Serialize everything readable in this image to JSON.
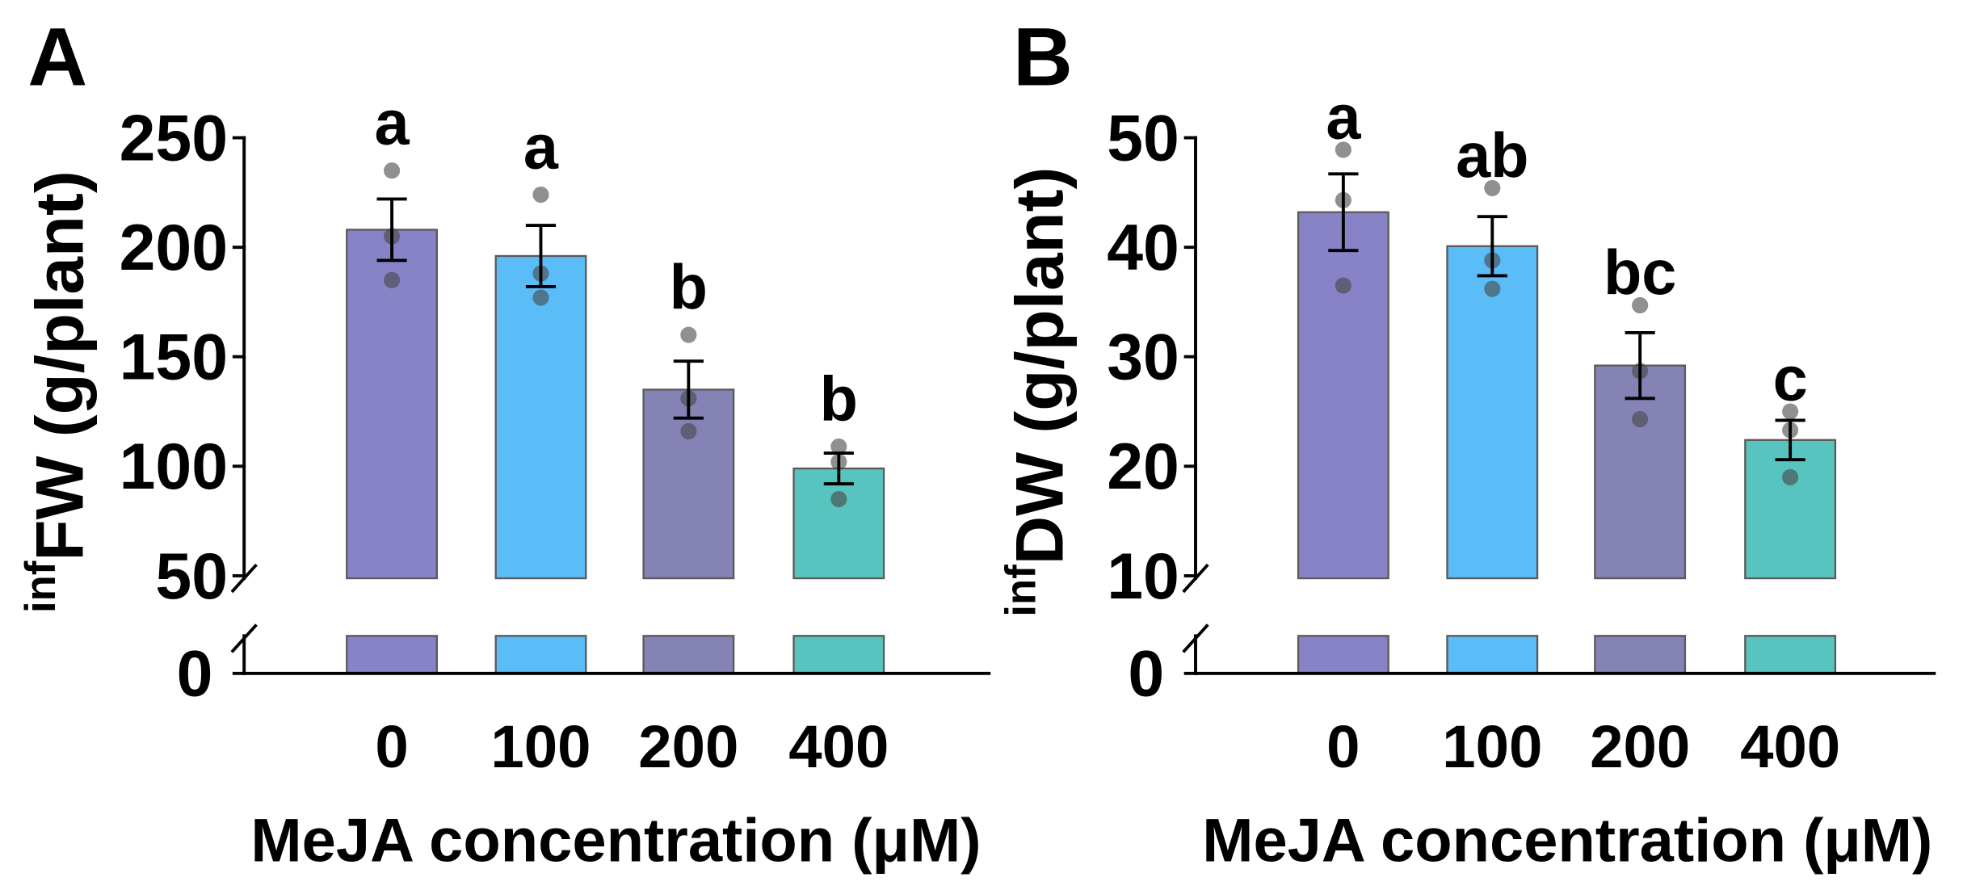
{
  "chart_data": [
    {
      "type": "bar",
      "panel_label": "A",
      "categories": [
        "0",
        "100",
        "200",
        "400"
      ],
      "values": [
        208,
        196,
        135,
        99
      ],
      "errors": [
        14,
        14,
        13,
        7
      ],
      "points": [
        [
          235,
          205,
          185
        ],
        [
          224,
          188,
          177
        ],
        [
          160,
          131,
          116
        ],
        [
          109,
          102,
          85
        ]
      ],
      "letters": [
        "a",
        "a",
        "b",
        "b"
      ],
      "xlabel": "MeJA concentration (μM)",
      "ylabel_sup": "inf",
      "ylabel": "FW (g/plant)",
      "ylim": [
        50,
        250
      ],
      "yticks": [
        50,
        100,
        150,
        200,
        250
      ],
      "axis_break": true,
      "lower_tick": 0,
      "colors": [
        "#8783C6",
        "#5ABDF7",
        "#8582B5",
        "#58C4BF"
      ]
    },
    {
      "type": "bar",
      "panel_label": "B",
      "categories": [
        "0",
        "100",
        "200",
        "400"
      ],
      "values": [
        43.2,
        40.1,
        29.2,
        22.4
      ],
      "errors": [
        3.5,
        2.7,
        3.0,
        1.8
      ],
      "points": [
        [
          48.9,
          44.3,
          36.5
        ],
        [
          45.4,
          38.8,
          36.2
        ],
        [
          34.7,
          28.7,
          24.3
        ],
        [
          25.0,
          23.3,
          19.0
        ]
      ],
      "letters": [
        "a",
        "ab",
        "bc",
        "c"
      ],
      "xlabel": "MeJA concentration (μM)",
      "ylabel_sup": "inf",
      "ylabel": "DW (g/plant)",
      "ylim": [
        10,
        50
      ],
      "yticks": [
        10,
        20,
        30,
        40,
        50
      ],
      "axis_break": true,
      "lower_tick": 0,
      "colors": [
        "#8783C6",
        "#5ABDF7",
        "#8582B5",
        "#58C4BF"
      ]
    }
  ]
}
